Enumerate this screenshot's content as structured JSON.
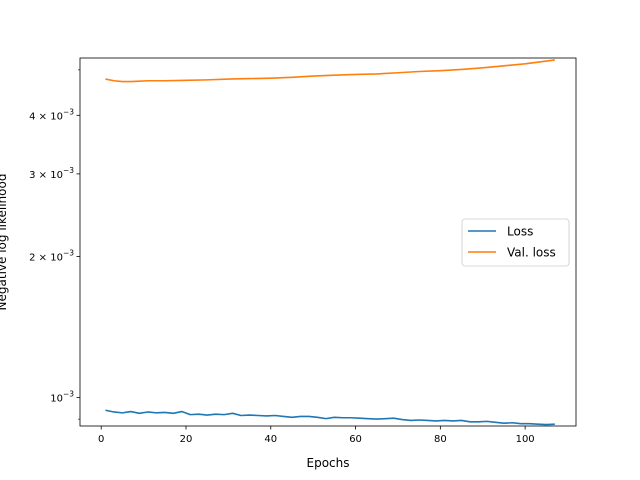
{
  "chart_data": {
    "type": "line",
    "title": "",
    "xlabel": "Epochs",
    "ylabel": "Negative log likelihood",
    "yscale": "log",
    "xlim": [
      -5,
      112
    ],
    "ylim": [
      0.00087,
      0.0053
    ],
    "xticks": [
      0,
      20,
      40,
      60,
      80,
      100
    ],
    "xtick_labels": [
      "0",
      "20",
      "40",
      "60",
      "80",
      "100"
    ],
    "yticks": [
      0.001,
      0.002,
      0.003,
      0.004
    ],
    "ytick_mantissas": [
      "",
      "2",
      "3",
      "4"
    ],
    "ytick_base": "10",
    "ytick_exponent": "−3",
    "legend_placement": "center-right",
    "grid": false,
    "series": [
      {
        "name": "Loss",
        "color": "#1f77b4",
        "x": [
          1,
          3,
          5,
          7,
          9,
          11,
          13,
          15,
          17,
          19,
          21,
          23,
          25,
          27,
          29,
          31,
          33,
          35,
          37,
          39,
          41,
          43,
          45,
          47,
          49,
          51,
          53,
          55,
          57,
          59,
          61,
          63,
          65,
          67,
          69,
          71,
          73,
          75,
          77,
          79,
          81,
          83,
          85,
          87,
          89,
          91,
          93,
          95,
          97,
          99,
          101,
          103,
          105,
          107
        ],
        "values": [
          0.00094,
          0.000932,
          0.000928,
          0.000934,
          0.000926,
          0.000932,
          0.000928,
          0.00093,
          0.000926,
          0.000934,
          0.00092,
          0.000922,
          0.000918,
          0.000922,
          0.00092,
          0.000926,
          0.000916,
          0.000918,
          0.000916,
          0.000914,
          0.000916,
          0.000912,
          0.000908,
          0.000912,
          0.000912,
          0.000908,
          0.000902,
          0.000908,
          0.000906,
          0.000906,
          0.000904,
          0.000902,
          0.0009,
          0.000902,
          0.000904,
          0.000898,
          0.000894,
          0.000896,
          0.000894,
          0.000892,
          0.000894,
          0.000892,
          0.000894,
          0.000888,
          0.000888,
          0.00089,
          0.000886,
          0.000882,
          0.000884,
          0.00088,
          0.00088,
          0.000878,
          0.000876,
          0.000878
        ]
      },
      {
        "name": "Val. loss",
        "color": "#ff7f0e",
        "x": [
          1,
          3,
          5,
          7,
          9,
          11,
          15,
          20,
          25,
          30,
          35,
          40,
          45,
          50,
          55,
          60,
          65,
          70,
          75,
          80,
          85,
          90,
          95,
          100,
          105,
          107
        ],
        "values": [
          0.00478,
          0.00474,
          0.00472,
          0.00472,
          0.00473,
          0.00474,
          0.00474,
          0.00475,
          0.00476,
          0.00478,
          0.00479,
          0.0048,
          0.00482,
          0.00485,
          0.00487,
          0.00489,
          0.0049,
          0.00493,
          0.00496,
          0.00498,
          0.00501,
          0.00505,
          0.0051,
          0.00515,
          0.00522,
          0.00525
        ]
      }
    ]
  }
}
